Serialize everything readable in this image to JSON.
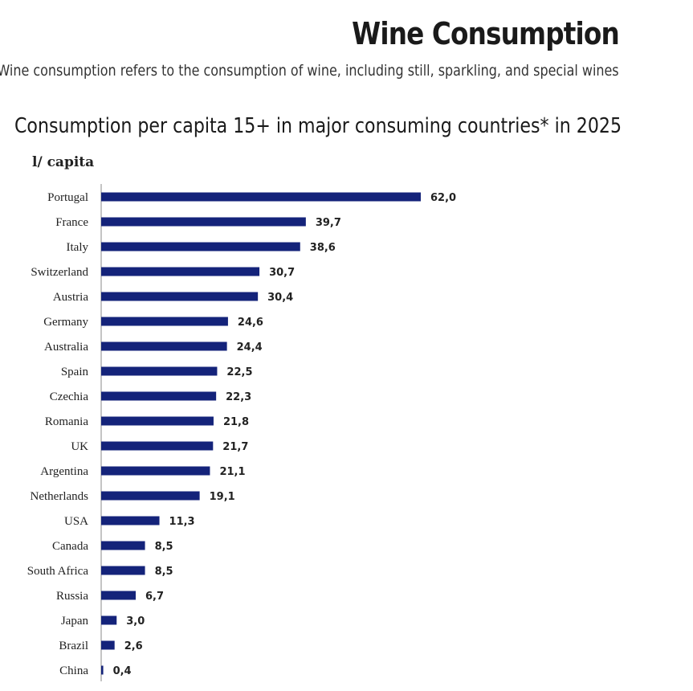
{
  "header": {
    "title": "Wine Consumption",
    "subtitle": "Wine consumption refers to the consumption of wine, including still, sparkling, and special wines"
  },
  "chart_data": {
    "type": "bar",
    "orientation": "horizontal",
    "title": "Consumption per capita 15+ in major consuming countries* in 2025",
    "unit_label": "l/ capita",
    "categories": [
      "Portugal",
      "France",
      "Italy",
      "Switzerland",
      "Austria",
      "Germany",
      "Australia",
      "Spain",
      "Czechia",
      "Romania",
      "UK",
      "Argentina",
      "Netherlands",
      "USA",
      "Canada",
      "South Africa",
      "Russia",
      "Japan",
      "Brazil",
      "China"
    ],
    "values": [
      62.0,
      39.7,
      38.6,
      30.7,
      30.4,
      24.6,
      24.4,
      22.5,
      22.3,
      21.8,
      21.7,
      21.1,
      19.1,
      11.3,
      8.5,
      8.5,
      6.7,
      3.0,
      2.6,
      0.4
    ],
    "value_labels": [
      "62,0",
      "39,7",
      "38,6",
      "30,7",
      "30,4",
      "24,6",
      "24,4",
      "22,5",
      "22,3",
      "21,8",
      "21,7",
      "21,1",
      "19,1",
      "11,3",
      "8,5",
      "8,5",
      "6,7",
      "3,0",
      "2,6",
      "0,4"
    ],
    "bar_color": "#14237a",
    "axis_color": "#888888",
    "grid": false,
    "legend": "none"
  }
}
